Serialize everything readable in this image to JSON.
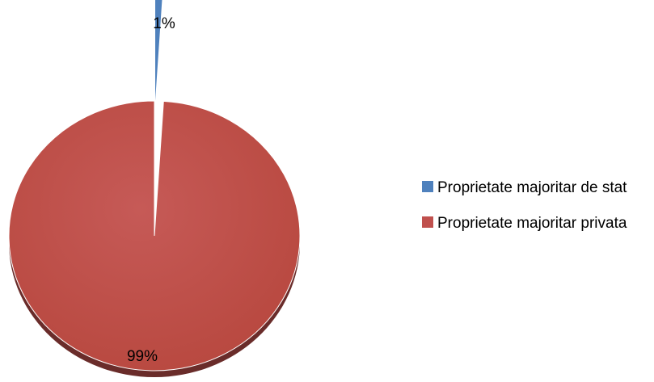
{
  "chart_data": {
    "type": "pie",
    "title": "",
    "slices": [
      {
        "label": "Proprietate majoritar de stat",
        "value": 1,
        "display": "1%",
        "color": "#4f81bd"
      },
      {
        "label": "Proprietate majoritar privata",
        "value": 99,
        "display": "99%",
        "color": "#c0504d"
      }
    ],
    "exploded_slice": "Proprietate majoritar de stat",
    "style": "3d",
    "legend_position": "right"
  },
  "legend": {
    "items": [
      {
        "label": "Proprietate majoritar de stat",
        "color": "#4f81bd"
      },
      {
        "label": "Proprietate majoritar privata",
        "color": "#c0504d"
      }
    ]
  }
}
